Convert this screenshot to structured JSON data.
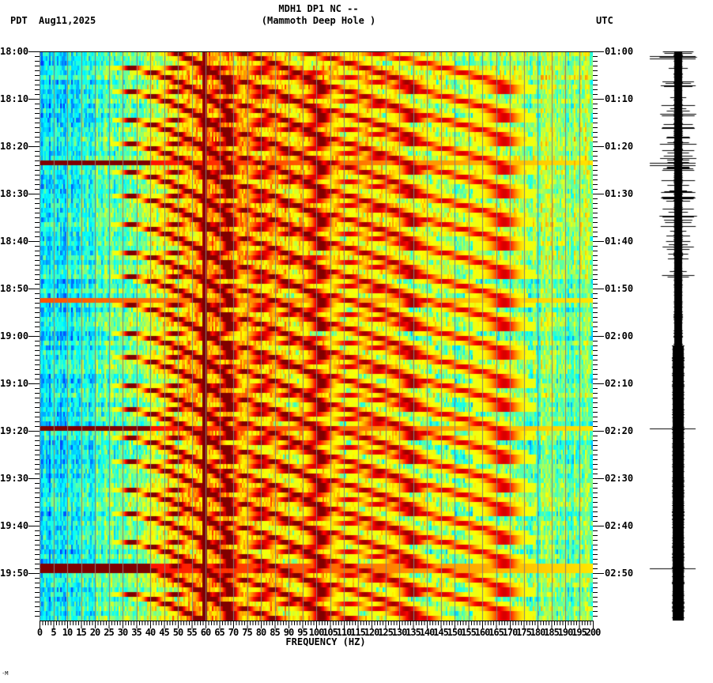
{
  "header": {
    "station_line": "MDH1 DP1 NC --",
    "location_line": "(Mammoth Deep Hole )",
    "left_timezone": "PDT",
    "date": "Aug11,2025",
    "right_timezone": "UTC"
  },
  "footer": {
    "corner_mark": "·M"
  },
  "chart_data": {
    "type": "heatmap",
    "title": "MDH1 DP1 NC -- (Mammoth Deep Hole )",
    "subtitle": "Aug11,2025",
    "xlabel": "FREQUENCY (HZ)",
    "ylabel_left": "PDT",
    "ylabel_right": "UTC",
    "xlim": [
      0,
      200
    ],
    "x_ticks": [
      0,
      5,
      10,
      15,
      20,
      25,
      30,
      35,
      40,
      45,
      50,
      55,
      60,
      65,
      70,
      75,
      80,
      85,
      90,
      95,
      100,
      105,
      110,
      115,
      120,
      125,
      130,
      135,
      140,
      145,
      150,
      155,
      160,
      165,
      170,
      175,
      180,
      185,
      190,
      195,
      200
    ],
    "x_tick_labels": [
      "0",
      "5",
      "10",
      "15",
      "20",
      "25",
      "30",
      "35",
      "40",
      "45",
      "50",
      "55",
      "60",
      "65",
      "70",
      "75",
      "80",
      "85",
      "90",
      "95",
      "100",
      "105",
      "110",
      "115",
      "120",
      "125",
      "130",
      "135",
      "140",
      "145",
      "150",
      "155",
      "160",
      "165",
      "170",
      "175",
      "180",
      "185",
      "190",
      "195",
      "200"
    ],
    "y_ticks_left_pdt": [
      "18:00",
      "18:10",
      "18:20",
      "18:30",
      "18:40",
      "18:50",
      "19:00",
      "19:10",
      "19:20",
      "19:30",
      "19:40",
      "19:50"
    ],
    "y_ticks_right_utc": [
      "01:00",
      "01:10",
      "01:20",
      "01:30",
      "01:40",
      "01:50",
      "02:00",
      "02:10",
      "02:20",
      "02:30",
      "02:40",
      "02:50"
    ],
    "time_span_minutes": 120,
    "minor_tick_interval_minutes": 1,
    "colormap": [
      "#0000ff",
      "#0080ff",
      "#00ffff",
      "#80ff80",
      "#ffff00",
      "#ff8000",
      "#ff0000",
      "#800000"
    ],
    "grid_vertical_every_hz": 5,
    "grid_color": "#808080",
    "features": {
      "persistent_line_hz": 59.5,
      "persistent_line_strong_after_minute": 52,
      "broadband_events_minutes": [
        23.5,
        52.5,
        79.5,
        109
      ],
      "strong_broadband_events_minutes": [
        23.5,
        79.5,
        109
      ],
      "curved_harmonic_bands": {
        "description": "repeating dark-red glide bands rising in frequency with time, period ~5-6 min, with multiple harmonics fading above ~130 Hz",
        "sweep_start_minutes": [
          -3,
          3,
          8,
          14,
          19,
          25,
          30,
          36,
          42,
          47,
          53,
          59,
          64,
          70,
          75,
          81,
          86,
          92,
          97,
          103,
          108,
          114
        ],
        "fundamental_start_hz": 20,
        "fundamental_end_hz": 60,
        "sweep_duration_minutes": 10,
        "harmonic_count": 4
      },
      "energy_fade_hz": 130
    },
    "waveform": {
      "type": "seismogram trace",
      "quiet_until_minute": 62,
      "elevated_after_minute": 62,
      "spikes_minutes": [
        1,
        23.5,
        79.5,
        109
      ]
    }
  }
}
